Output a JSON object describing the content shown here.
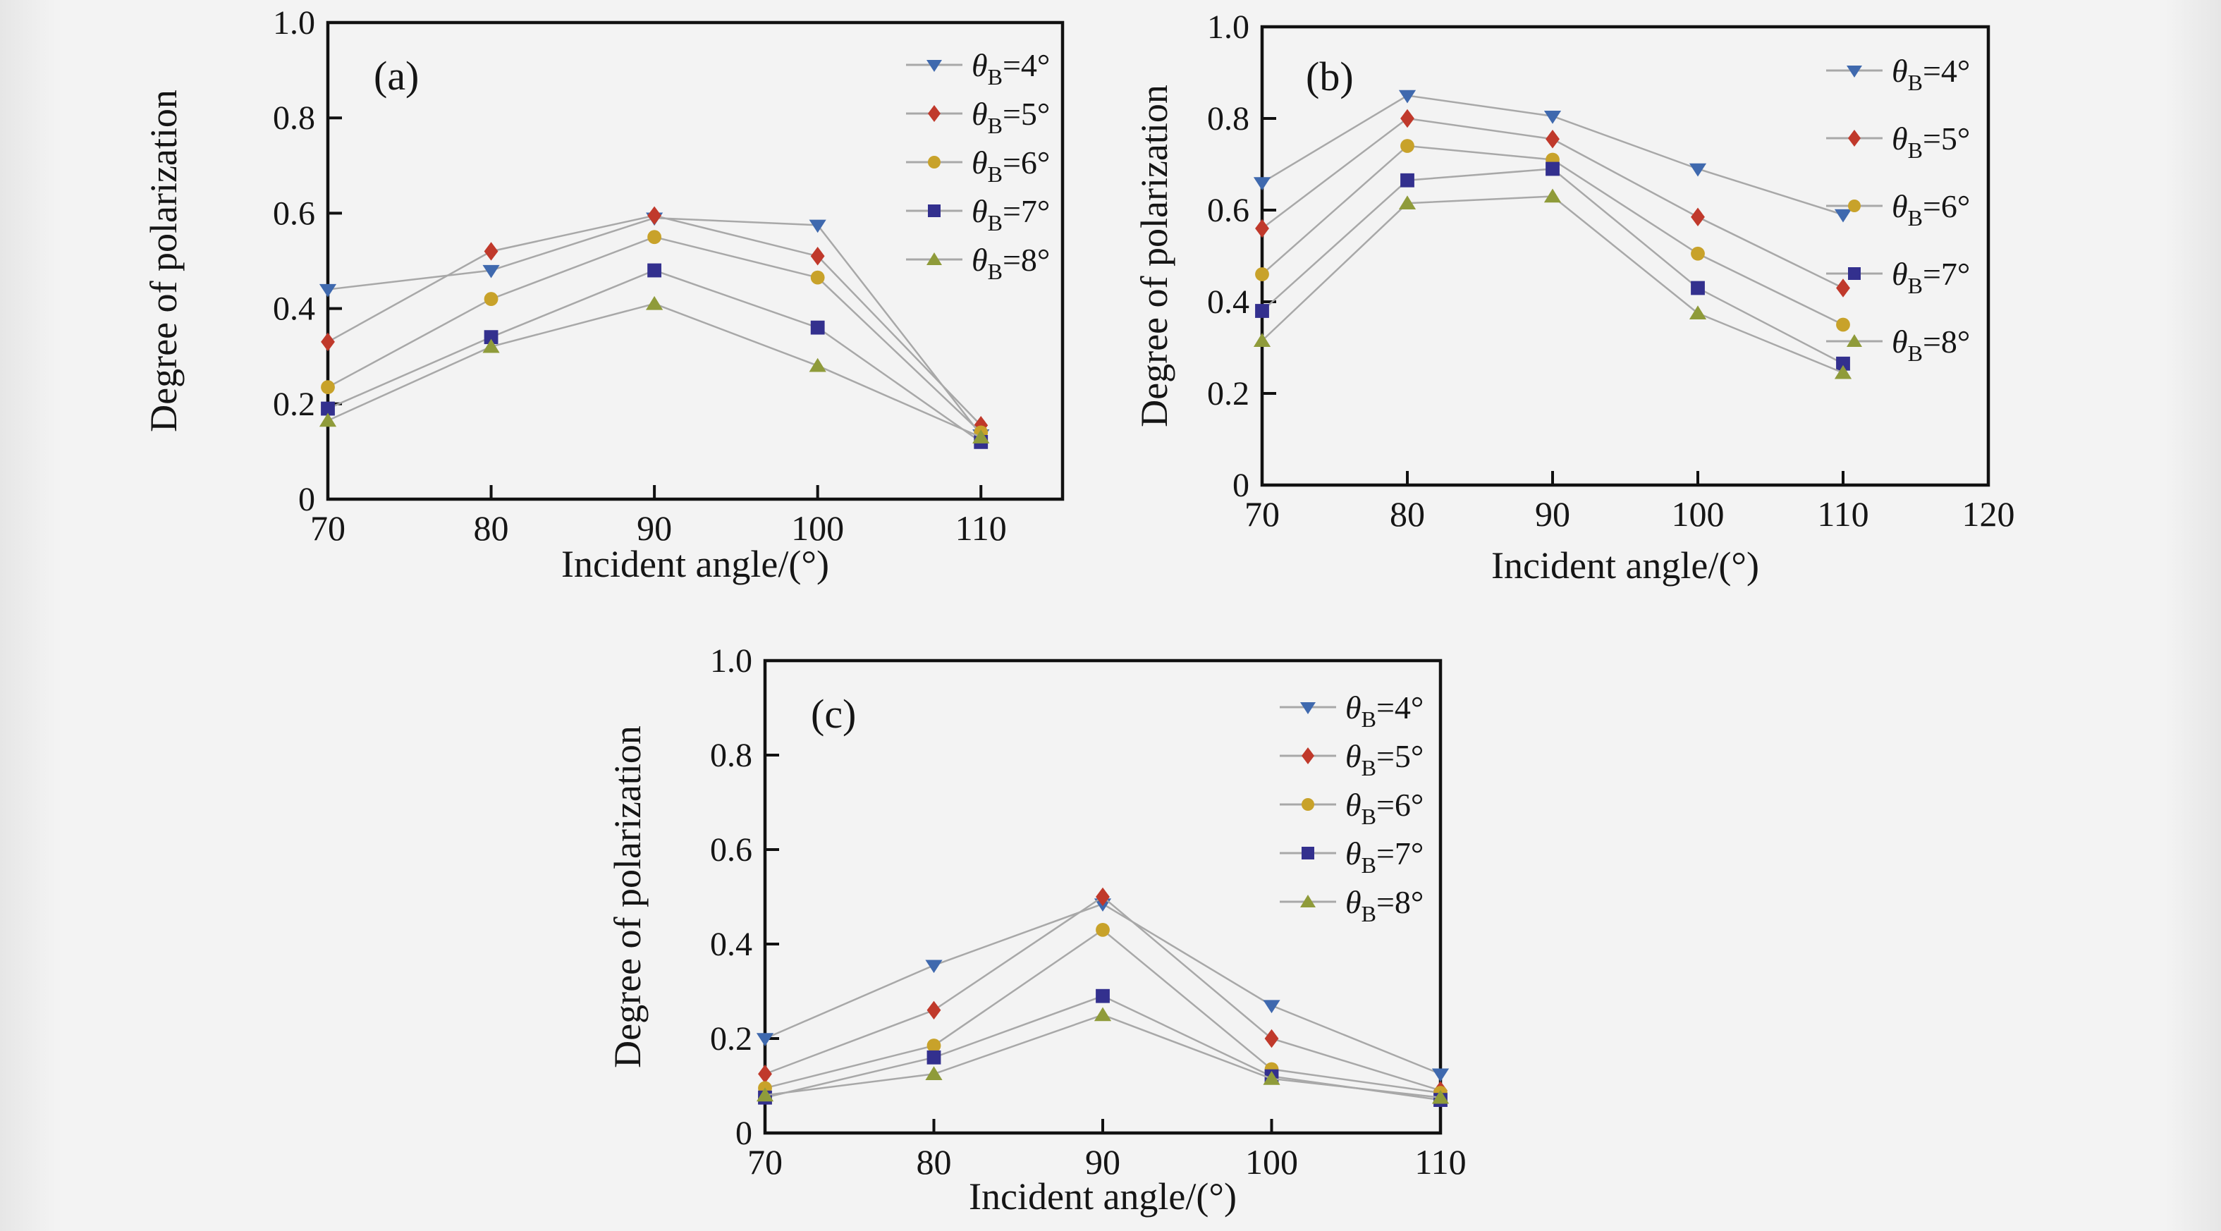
{
  "figure": {
    "background": "#f2f2f2",
    "text_color": "#151515",
    "axis_color": "#111111",
    "line_color": "#a8a8a8"
  },
  "chart_data": [
    {
      "id": "a",
      "type": "line",
      "panel_label": "(a)",
      "xlabel": "Incident angle/(°)",
      "ylabel": "Degree of polarization",
      "x": [
        70,
        80,
        90,
        100,
        110
      ],
      "xlim": [
        70,
        115
      ],
      "ylim": [
        0,
        1.0
      ],
      "xtick_labels": [
        "70",
        "80",
        "90",
        "100",
        "110"
      ],
      "ytick_labels": [
        "0",
        "0.2",
        "0.4",
        "0.6",
        "0.8",
        "1.0"
      ],
      "grid": false,
      "legend_position": "top-right",
      "series": [
        {
          "name": "θB=4°",
          "marker": "triangle-down",
          "color": "#3f69ae",
          "values": [
            0.44,
            0.48,
            0.59,
            0.575,
            0.135
          ]
        },
        {
          "name": "θB=5°",
          "marker": "diamond",
          "color": "#c0392b",
          "values": [
            0.33,
            0.52,
            0.595,
            0.51,
            0.155
          ]
        },
        {
          "name": "θB=6°",
          "marker": "circle",
          "color": "#c8a22a",
          "values": [
            0.235,
            0.42,
            0.55,
            0.465,
            0.14
          ]
        },
        {
          "name": "θB=7°",
          "marker": "square",
          "color": "#33308e",
          "values": [
            0.19,
            0.34,
            0.48,
            0.36,
            0.12
          ]
        },
        {
          "name": "θB=8°",
          "marker": "triangle-up",
          "color": "#8f9b3a",
          "values": [
            0.165,
            0.32,
            0.41,
            0.28,
            0.13
          ]
        }
      ]
    },
    {
      "id": "b",
      "type": "line",
      "panel_label": "(b)",
      "xlabel": "Incident angle/(°)",
      "ylabel": "Degree of polarization",
      "x": [
        70,
        80,
        90,
        100,
        110
      ],
      "xlim": [
        70,
        120
      ],
      "ylim": [
        0,
        1.0
      ],
      "xtick_labels": [
        "70",
        "80",
        "90",
        "100",
        "110",
        "120"
      ],
      "ytick_labels": [
        "0",
        "0.2",
        "0.4",
        "0.6",
        "0.8",
        "1.0"
      ],
      "grid": false,
      "legend_position": "top-right",
      "series": [
        {
          "name": "θB=4°",
          "marker": "triangle-down",
          "color": "#3f69ae",
          "values": [
            0.66,
            0.85,
            0.805,
            0.69,
            0.59
          ]
        },
        {
          "name": "θB=5°",
          "marker": "diamond",
          "color": "#c0392b",
          "values": [
            0.56,
            0.8,
            0.755,
            0.585,
            0.43
          ]
        },
        {
          "name": "θB=6°",
          "marker": "circle",
          "color": "#c8a22a",
          "values": [
            0.46,
            0.74,
            0.71,
            0.505,
            0.35
          ]
        },
        {
          "name": "θB=7°",
          "marker": "square",
          "color": "#33308e",
          "values": [
            0.38,
            0.665,
            0.69,
            0.43,
            0.265
          ]
        },
        {
          "name": "θB=8°",
          "marker": "triangle-up",
          "color": "#8f9b3a",
          "values": [
            0.315,
            0.615,
            0.63,
            0.375,
            0.245
          ]
        }
      ]
    },
    {
      "id": "c",
      "type": "line",
      "panel_label": "(c)",
      "xlabel": "Incident angle/(°)",
      "ylabel": "Degree of polarization",
      "x": [
        70,
        80,
        90,
        100,
        110
      ],
      "xlim": [
        70,
        110
      ],
      "ylim": [
        0,
        1.0
      ],
      "xtick_labels": [
        "70",
        "80",
        "90",
        "100",
        "110"
      ],
      "ytick_labels": [
        "0",
        "0.2",
        "0.4",
        "0.6",
        "0.8",
        "1.0"
      ],
      "grid": false,
      "legend_position": "top-right",
      "series": [
        {
          "name": "θB=4°",
          "marker": "triangle-down",
          "color": "#3f69ae",
          "values": [
            0.2,
            0.355,
            0.485,
            0.27,
            0.125
          ]
        },
        {
          "name": "θB=5°",
          "marker": "diamond",
          "color": "#c0392b",
          "values": [
            0.125,
            0.26,
            0.5,
            0.2,
            0.09
          ]
        },
        {
          "name": "θB=6°",
          "marker": "circle",
          "color": "#c8a22a",
          "values": [
            0.095,
            0.185,
            0.43,
            0.135,
            0.085
          ]
        },
        {
          "name": "θB=7°",
          "marker": "square",
          "color": "#33308e",
          "values": [
            0.075,
            0.16,
            0.29,
            0.12,
            0.07
          ]
        },
        {
          "name": "θB=8°",
          "marker": "triangle-up",
          "color": "#8f9b3a",
          "values": [
            0.08,
            0.125,
            0.25,
            0.115,
            0.075
          ]
        }
      ]
    }
  ]
}
